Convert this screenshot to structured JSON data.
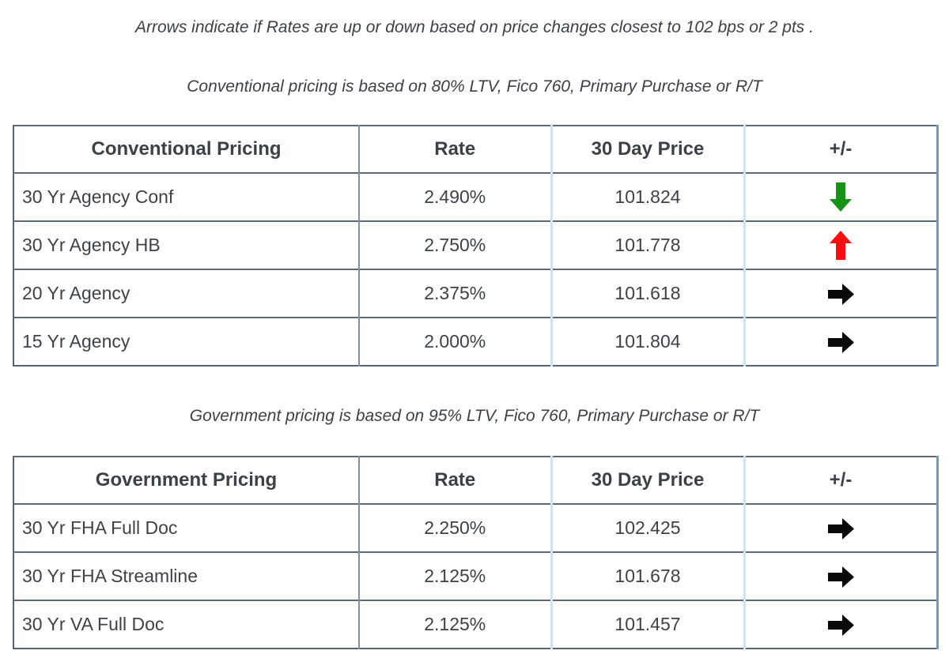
{
  "notes": {
    "arrows_note": "Arrows indicate if Rates are up or down based on price changes closest to 102 bps or 2 pts .",
    "conventional_note": "Conventional pricing is based on 80% LTV, Fico 760, Primary Purchase or R/T",
    "government_note": "Government pricing is based on 95% LTV, Fico 760, Primary Purchase or R/T"
  },
  "colors": {
    "up_arrow": "#f50f0f",
    "down_arrow": "#169216",
    "steady_arrow": "#0a0a0a",
    "border_dark": "#5d6b78",
    "divider_steel": "#7e93a9",
    "divider_light": "#cee2f1"
  },
  "conventional_table": {
    "headers": {
      "product": "Conventional Pricing",
      "rate": "Rate",
      "price": "30 Day Price",
      "change": "+/-"
    },
    "rows": [
      {
        "product": "30 Yr Agency Conf",
        "rate": "2.490%",
        "price": "101.824",
        "change": "down"
      },
      {
        "product": "30 Yr Agency HB",
        "rate": "2.750%",
        "price": "101.778",
        "change": "up"
      },
      {
        "product": "20 Yr Agency",
        "rate": "2.375%",
        "price": "101.618",
        "change": "steady"
      },
      {
        "product": "15 Yr Agency",
        "rate": "2.000%",
        "price": "101.804",
        "change": "steady"
      }
    ]
  },
  "government_table": {
    "headers": {
      "product": "Government Pricing",
      "rate": "Rate",
      "price": "30 Day Price",
      "change": "+/-"
    },
    "rows": [
      {
        "product": "30 Yr FHA Full Doc",
        "rate": "2.250%",
        "price": "102.425",
        "change": "steady"
      },
      {
        "product": "30 Yr FHA Streamline",
        "rate": "2.125%",
        "price": "101.678",
        "change": "steady"
      },
      {
        "product": "30 Yr VA Full Doc",
        "rate": "2.125%",
        "price": "101.457",
        "change": "steady"
      }
    ]
  }
}
